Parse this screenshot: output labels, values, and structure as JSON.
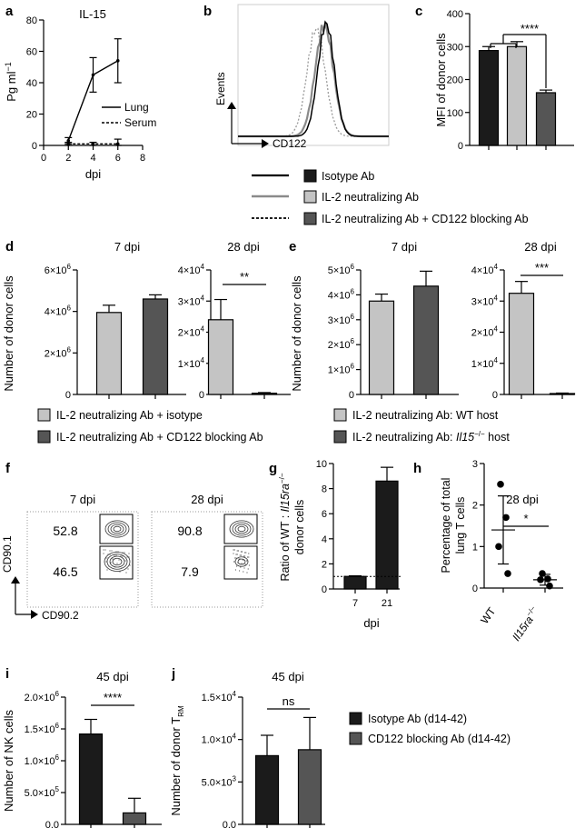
{
  "colors": {
    "isotype": "#1b1b1b",
    "il2": "#c4c4c4",
    "il2_cd122": "#555555",
    "hist_iso": "#000000",
    "hist_il2": "#8a8a8a",
    "hist_cd122": "#9a9a9a"
  },
  "legend_top": {
    "items": [
      {
        "label": "Isotype Ab",
        "color": "#1b1b1b",
        "line": "solid-black"
      },
      {
        "label": "IL-2 neutralizing Ab",
        "color": "#c4c4c4",
        "line": "solid-gray"
      },
      {
        "label": "IL-2 neutralizing Ab + CD122 blocking Ab",
        "color": "#555555",
        "line": "dotted"
      }
    ]
  },
  "legend_d": [
    {
      "label": "IL-2 neutralizing Ab + isotype",
      "color": "#c4c4c4"
    },
    {
      "label": "IL-2 neutralizing Ab + CD122 blocking Ab",
      "color": "#555555"
    }
  ],
  "legend_e": [
    {
      "label": "IL-2 neutralizing Ab: WT host",
      "color": "#c4c4c4"
    },
    {
      "label": "IL-2 neutralizing Ab: ",
      "italic": "Il15",
      "sup": "−/−",
      "tail": " host",
      "color": "#555555"
    }
  ],
  "legend_ij": [
    {
      "label": "Isotype Ab (d14-42)",
      "color": "#1b1b1b"
    },
    {
      "label": "CD122 blocking Ab (d14-42)",
      "color": "#555555"
    }
  ],
  "flow_f": {
    "letter": "f",
    "panels": [
      {
        "title": "7 dpi",
        "upper": "52.8",
        "lower": "46.5"
      },
      {
        "title": "28 dpi",
        "upper": "90.8",
        "lower": "7.9"
      }
    ],
    "xlabel": "CD90.2",
    "ylabel": "CD90.1"
  },
  "hist_b": {
    "letter": "b",
    "xlabel": "CD122",
    "ylabel": "Events"
  },
  "chart_data": [
    {
      "id": "a",
      "type": "line",
      "title": "IL-15",
      "xlabel": "dpi",
      "ylabel": "Pg ml",
      "xlim": [
        0,
        8
      ],
      "ylim": [
        0,
        80
      ],
      "xticks": [
        "0",
        "2",
        "4",
        "6",
        "8"
      ],
      "yticks": [
        "0",
        "20",
        "40",
        "60",
        "80"
      ],
      "series": [
        {
          "name": "Lung",
          "style": "solid",
          "x": [
            2,
            4,
            6
          ],
          "y": [
            3,
            45,
            54
          ],
          "err": [
            2,
            11,
            14
          ]
        },
        {
          "name": "Serum",
          "style": "dotted",
          "x": [
            2,
            4,
            6
          ],
          "y": [
            1,
            1,
            1
          ],
          "err": [
            1,
            1,
            3
          ]
        }
      ]
    },
    {
      "id": "c",
      "type": "bar",
      "ylabel": "MFI of donor cells",
      "ylim": [
        0,
        400
      ],
      "yticks": [
        "0",
        "100",
        "200",
        "300",
        "400"
      ],
      "categories": [
        "Isotype Ab",
        "IL-2 neutralizing Ab",
        "IL-2 neutralizing Ab + CD122 blocking Ab"
      ],
      "values": [
        288,
        300,
        160
      ],
      "errors": [
        12,
        15,
        8
      ],
      "significance": "****"
    },
    {
      "id": "d7",
      "type": "bar",
      "title": "7 dpi",
      "ylabel": "Number of donor cells",
      "ylim": [
        0,
        6000000
      ],
      "yticks": [
        {
          "m": "0",
          "e": ""
        },
        {
          "m": "2×10",
          "e": "6"
        },
        {
          "m": "4×10",
          "e": "6"
        },
        {
          "m": "6×10",
          "e": "6"
        }
      ],
      "values": [
        3950000,
        4600000
      ],
      "errors": [
        350000,
        200000
      ]
    },
    {
      "id": "d28",
      "type": "bar",
      "title": "28 dpi",
      "ylim": [
        0,
        40000
      ],
      "yticks": [
        {
          "m": "0",
          "e": ""
        },
        {
          "m": "1×10",
          "e": "4"
        },
        {
          "m": "2×10",
          "e": "4"
        },
        {
          "m": "3×10",
          "e": "4"
        },
        {
          "m": "4×10",
          "e": "4"
        }
      ],
      "values": [
        24000,
        400
      ],
      "errors": [
        6500,
        200
      ],
      "significance": "**"
    },
    {
      "id": "e7",
      "type": "bar",
      "title": "7 dpi",
      "ylabel": "Number of donor cells",
      "ylim": [
        0,
        5000000
      ],
      "yticks": [
        {
          "m": "0",
          "e": ""
        },
        {
          "m": "1×10",
          "e": "6"
        },
        {
          "m": "2×10",
          "e": "6"
        },
        {
          "m": "3×10",
          "e": "6"
        },
        {
          "m": "4×10",
          "e": "6"
        },
        {
          "m": "5×10",
          "e": "6"
        }
      ],
      "values": [
        3750000,
        4350000
      ],
      "errors": [
        280000,
        600000
      ]
    },
    {
      "id": "e28",
      "type": "bar",
      "title": "28 dpi",
      "ylim": [
        0,
        40000
      ],
      "yticks": [
        {
          "m": "0",
          "e": ""
        },
        {
          "m": "1×10",
          "e": "4"
        },
        {
          "m": "2×10",
          "e": "4"
        },
        {
          "m": "3×10",
          "e": "4"
        },
        {
          "m": "4×10",
          "e": "4"
        }
      ],
      "values": [
        32500,
        300
      ],
      "errors": [
        3800,
        150
      ],
      "significance": "***"
    },
    {
      "id": "g",
      "type": "bar",
      "xlabel": "dpi",
      "ylabel_pre": "Ratio of WT : ",
      "ylabel_italic": "Il15ra",
      "ylabel_sup": "−/−",
      "ylabel_line2": "donor cells",
      "ylim": [
        0,
        10
      ],
      "yticks": [
        "0",
        "2",
        "4",
        "6",
        "8",
        "10"
      ],
      "categories": [
        "7",
        "21"
      ],
      "values": [
        1.0,
        8.6
      ],
      "errors": [
        0.05,
        1.1
      ],
      "reference_line": 1
    },
    {
      "id": "h",
      "type": "scatter",
      "title": "28 dpi",
      "ylabel": "Percentage of total",
      "ylabel_line2": "lung T cells",
      "ylim": [
        0,
        3
      ],
      "yticks": [
        "0",
        "1",
        "2",
        "3"
      ],
      "categories": [
        "WT",
        "Il15ra"
      ],
      "cat_sup": "−/−",
      "points": [
        [
          2.5,
          1.7,
          1.0,
          0.35
        ],
        [
          0.35,
          0.22,
          0.2,
          0.05
        ]
      ],
      "means": [
        1.4,
        0.2
      ],
      "sd": [
        0.82,
        0.13
      ],
      "significance": "*"
    },
    {
      "id": "i",
      "type": "bar",
      "title": "45 dpi",
      "ylabel": "Number of NK cells",
      "ylim": [
        0,
        2000000
      ],
      "yticks": [
        {
          "m": "0.0",
          "e": ""
        },
        {
          "m": "5.0×10",
          "e": "5"
        },
        {
          "m": "1.0×10",
          "e": "6"
        },
        {
          "m": "1.5×10",
          "e": "6"
        },
        {
          "m": "2.0×10",
          "e": "6"
        }
      ],
      "values": [
        1420000,
        180000
      ],
      "errors": [
        230000,
        230000
      ],
      "significance": "****"
    },
    {
      "id": "j",
      "type": "bar",
      "title": "45 dpi",
      "ylabel": "Number of donor T",
      "ylabel_sub": "RM",
      "ylim": [
        0,
        15000
      ],
      "yticks": [
        {
          "m": "0.0",
          "e": ""
        },
        {
          "m": "5.0×10",
          "e": "3"
        },
        {
          "m": "1.0×10",
          "e": "4"
        },
        {
          "m": "1.5×10",
          "e": "4"
        }
      ],
      "values": [
        8100,
        8800
      ],
      "errors": [
        2400,
        3800
      ],
      "significance": "ns"
    }
  ],
  "panel_letters": [
    "a",
    "b",
    "c",
    "d",
    "e",
    "f",
    "g",
    "h",
    "i",
    "j"
  ],
  "ylabel_a_sup": "−1",
  "legend_a": [
    "Lung",
    "Serum"
  ]
}
